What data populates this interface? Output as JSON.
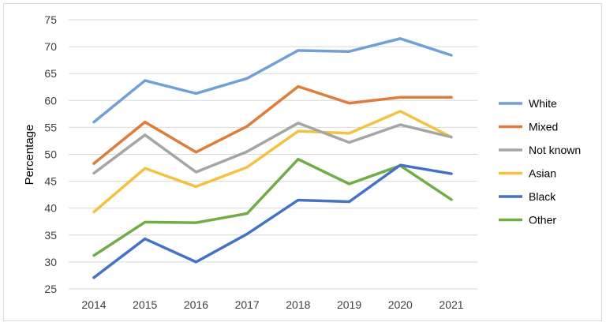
{
  "chart_data": {
    "type": "line",
    "title": "",
    "xlabel": "",
    "ylabel": "Percentage",
    "ylim": [
      25,
      75
    ],
    "yticks": [
      25,
      30,
      35,
      40,
      45,
      50,
      55,
      60,
      65,
      70,
      75
    ],
    "grid": true,
    "legend_position": "right",
    "categories": [
      "2014",
      "2015",
      "2016",
      "2017",
      "2018",
      "2019",
      "2020",
      "2021"
    ],
    "series": [
      {
        "name": "White",
        "color": "#6fa0d8",
        "values": [
          56.0,
          63.7,
          61.3,
          64.1,
          69.3,
          69.1,
          71.5,
          68.4
        ]
      },
      {
        "name": "Mixed",
        "color": "#e07b39",
        "values": [
          48.3,
          56.0,
          50.4,
          55.2,
          62.6,
          59.5,
          60.6,
          60.6
        ]
      },
      {
        "name": "Not known",
        "color": "#a5a5a5",
        "values": [
          46.5,
          53.6,
          46.7,
          50.5,
          55.8,
          52.2,
          55.5,
          53.2
        ]
      },
      {
        "name": "Asian",
        "color": "#f4c141",
        "values": [
          39.3,
          47.4,
          44.0,
          47.6,
          54.3,
          53.9,
          58.0,
          53.2
        ]
      },
      {
        "name": "Black",
        "color": "#4472c4",
        "values": [
          27.1,
          34.3,
          30.0,
          35.2,
          41.5,
          41.2,
          48.0,
          46.4
        ]
      },
      {
        "name": "Other",
        "color": "#70ad47",
        "values": [
          31.2,
          37.4,
          37.3,
          39.0,
          49.1,
          44.5,
          47.9,
          41.6
        ]
      }
    ]
  }
}
